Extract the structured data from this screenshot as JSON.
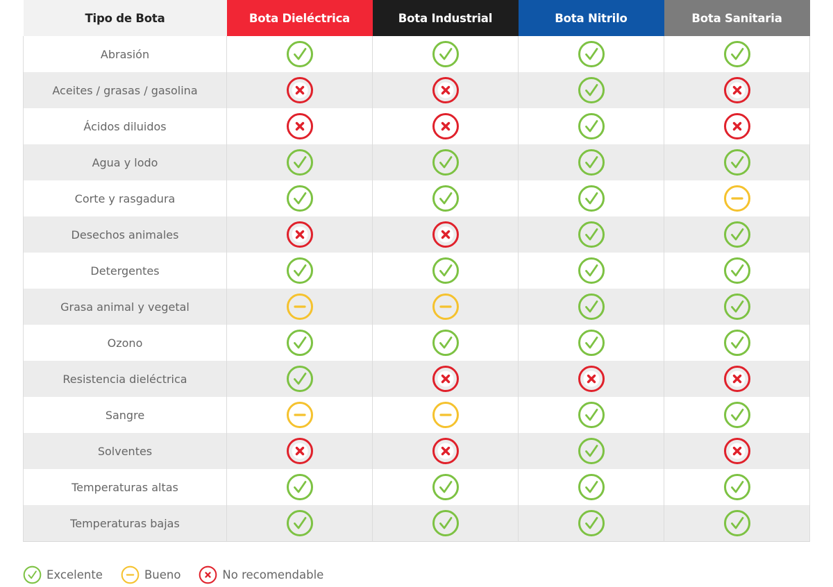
{
  "colors": {
    "excelente": "#7dc243",
    "excelente_dark": "#5aaa48",
    "bueno": "#f5c22e",
    "no": "#e0212b",
    "h_dielectrica": "#f12635",
    "h_industrial": "#1d1d1d",
    "h_nitrilo": "#0f56a7",
    "h_sanitaria": "#7c7c7c"
  },
  "table": {
    "headers": [
      "Tipo de Bota",
      "Bota Dieléctrica",
      "Bota Industrial",
      "Bota Nitrilo",
      "Bota Sanitaria"
    ],
    "header_icons": [
      "",
      "",
      "",
      "",
      ""
    ],
    "rows": [
      {
        "label": "Abrasión",
        "values": [
          "excelente",
          "excelente",
          "excelente",
          "excelente"
        ]
      },
      {
        "label": "Aceites / grasas / gasolina",
        "values": [
          "no",
          "no",
          "excelente",
          "no"
        ]
      },
      {
        "label": "Ácidos diluidos",
        "values": [
          "no",
          "no",
          "excelente",
          "no"
        ]
      },
      {
        "label": "Agua y lodo",
        "values": [
          "excelente",
          "excelente",
          "excelente",
          "excelente"
        ]
      },
      {
        "label": "Corte y rasgadura",
        "values": [
          "excelente",
          "excelente",
          "excelente",
          "bueno"
        ]
      },
      {
        "label": "Desechos animales",
        "values": [
          "no",
          "no",
          "excelente",
          "excelente"
        ]
      },
      {
        "label": "Detergentes",
        "values": [
          "excelente",
          "excelente",
          "excelente",
          "excelente"
        ]
      },
      {
        "label": "Grasa animal y vegetal",
        "values": [
          "bueno",
          "bueno",
          "excelente",
          "excelente"
        ]
      },
      {
        "label": "Ozono",
        "values": [
          "excelente",
          "excelente",
          "excelente",
          "excelente"
        ]
      },
      {
        "label": "Resistencia dieléctrica",
        "values": [
          "excelente",
          "no",
          "no",
          "no"
        ]
      },
      {
        "label": "Sangre",
        "values": [
          "bueno",
          "bueno",
          "excelente",
          "excelente"
        ]
      },
      {
        "label": "Solventes",
        "values": [
          "no",
          "no",
          "excelente",
          "no"
        ]
      },
      {
        "label": "Temperaturas altas",
        "values": [
          "excelente",
          "excelente",
          "excelente",
          "excelente"
        ]
      },
      {
        "label": "Temperaturas bajas",
        "values": [
          "excelente",
          "excelente",
          "excelente",
          "excelente"
        ]
      }
    ]
  },
  "legend": {
    "excelente": "Excelente",
    "bueno": "Bueno",
    "no": "No recomendable"
  },
  "icon_names": {
    "excelente": "check-circle-icon",
    "bueno": "minus-circle-icon",
    "no": "x-circle-icon"
  }
}
